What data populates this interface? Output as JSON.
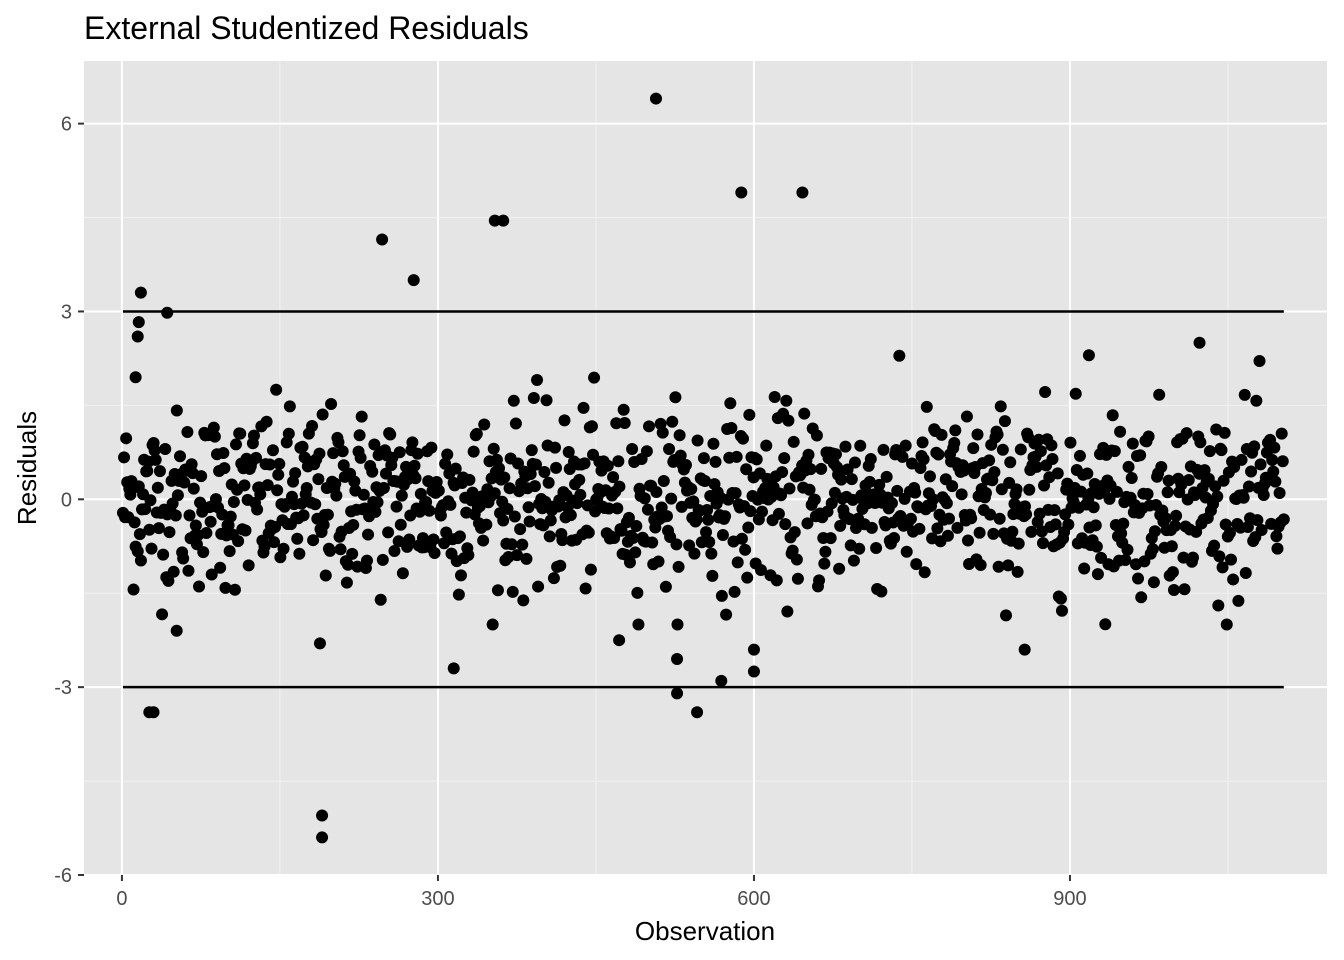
{
  "chart_data": {
    "type": "scatter",
    "title": "External Studentized Residuals",
    "xlabel": "Observation",
    "ylabel": "Residuals",
    "xlim": [
      -36,
      1144
    ],
    "ylim": [
      -6,
      7
    ],
    "x_ticks": [
      0,
      300,
      600,
      900
    ],
    "x_tick_labels": [
      "0",
      "300",
      "600",
      "900"
    ],
    "y_ticks": [
      -6,
      -3,
      0,
      3,
      6
    ],
    "y_tick_labels": [
      "-6",
      "-3",
      "0",
      "3",
      "6"
    ],
    "reference_lines": [
      {
        "y": 3,
        "x_start": 1,
        "x_end": 1103
      },
      {
        "y": -3,
        "x_start": 1,
        "x_end": 1103
      }
    ],
    "grid": true,
    "legend": "none",
    "colors": {
      "panel": "#e5e5e5",
      "grid_major": "#ffffff",
      "grid_minor": "#f2f2f2",
      "point": "#000000",
      "line": "#000000"
    },
    "outliers": [
      {
        "x": 507,
        "y": 6.4
      },
      {
        "x": 588,
        "y": 4.9
      },
      {
        "x": 646,
        "y": 4.9
      },
      {
        "x": 354,
        "y": 4.45
      },
      {
        "x": 362,
        "y": 4.45
      },
      {
        "x": 247,
        "y": 4.15
      },
      {
        "x": 277,
        "y": 3.5
      },
      {
        "x": 18,
        "y": 3.3
      },
      {
        "x": 43,
        "y": 2.98
      },
      {
        "x": 16,
        "y": 2.83
      },
      {
        "x": 15,
        "y": 2.6
      },
      {
        "x": 1023,
        "y": 2.5
      },
      {
        "x": 918,
        "y": 2.3
      },
      {
        "x": 13,
        "y": 1.95
      },
      {
        "x": 26,
        "y": -3.4
      },
      {
        "x": 30,
        "y": -3.4
      },
      {
        "x": 527,
        "y": -3.1
      },
      {
        "x": 546,
        "y": -3.4
      },
      {
        "x": 569,
        "y": -2.9
      },
      {
        "x": 600,
        "y": -2.75
      },
      {
        "x": 527,
        "y": -2.55
      },
      {
        "x": 600,
        "y": -2.4
      },
      {
        "x": 315,
        "y": -2.7
      },
      {
        "x": 857,
        "y": -2.4
      },
      {
        "x": 190,
        "y": -5.05
      },
      {
        "x": 190,
        "y": -5.4
      },
      {
        "x": 188,
        "y": -2.3
      },
      {
        "x": 52,
        "y": -2.1
      },
      {
        "x": 472,
        "y": -2.25
      }
    ],
    "bulk": {
      "n_points": 1100,
      "x_range": [
        1,
        1103
      ],
      "y_range": [
        -2.0,
        2.4
      ]
    }
  }
}
